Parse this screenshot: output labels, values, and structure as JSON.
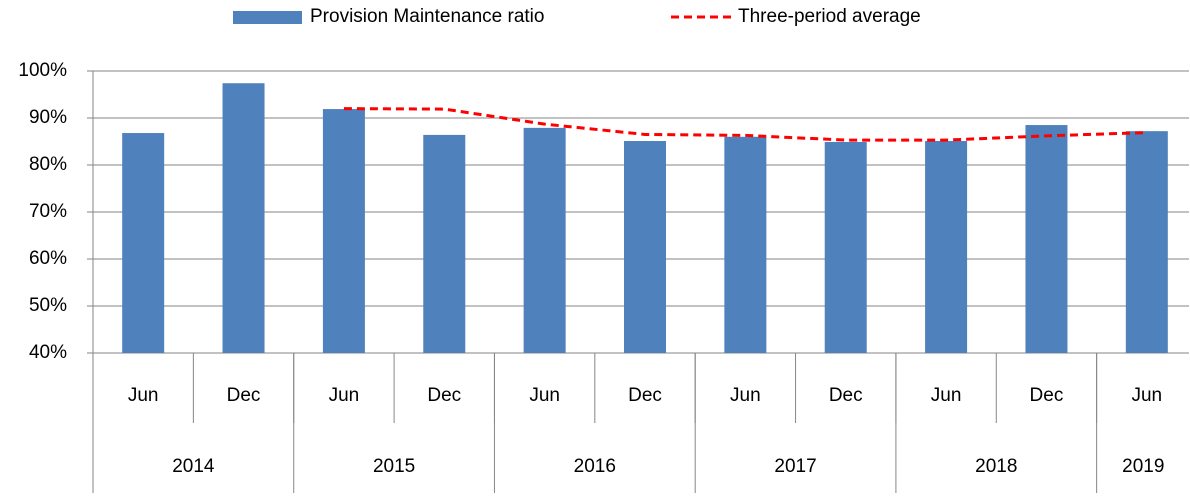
{
  "chart_data": {
    "type": "bar-line",
    "categories": [
      "Jun",
      "Dec",
      "Jun",
      "Dec",
      "Jun",
      "Dec",
      "Jun",
      "Dec",
      "Jun",
      "Dec",
      "Jun"
    ],
    "x_groups": [
      {
        "label": "2014",
        "count": 2
      },
      {
        "label": "2015",
        "count": 2
      },
      {
        "label": "2016",
        "count": 2
      },
      {
        "label": "2017",
        "count": 2
      },
      {
        "label": "2018",
        "count": 2
      },
      {
        "label": "2019",
        "count": 1
      }
    ],
    "series": [
      {
        "name": "Provision Maintenance ratio",
        "type": "bar",
        "color": "#4f81bd",
        "values": [
          86.8,
          97.4,
          91.9,
          86.4,
          87.9,
          85.1,
          86.0,
          84.9,
          85.1,
          88.5,
          87.2
        ]
      },
      {
        "name": "Three-period average",
        "type": "line",
        "color": "#ff0000",
        "dashed": true,
        "values": [
          null,
          null,
          92.0,
          91.9,
          88.7,
          86.5,
          86.3,
          85.3,
          85.3,
          86.2,
          86.9
        ]
      }
    ],
    "ylim": [
      40,
      100
    ],
    "yticks": [
      {
        "value": 40,
        "label": "40%"
      },
      {
        "value": 50,
        "label": "50%"
      },
      {
        "value": 60,
        "label": "60%"
      },
      {
        "value": 70,
        "label": "70%"
      },
      {
        "value": 80,
        "label": "80%"
      },
      {
        "value": 90,
        "label": "90%"
      },
      {
        "value": 100,
        "label": "100%"
      }
    ],
    "grid": true,
    "legend": "top"
  }
}
